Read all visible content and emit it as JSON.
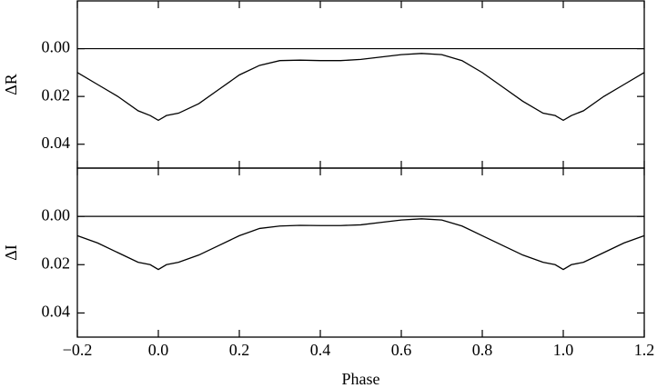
{
  "chart_data": [
    {
      "type": "line",
      "ylabel": "ΔR",
      "color": "#000000",
      "hline": 0,
      "x": [
        -0.2,
        -0.15,
        -0.1,
        -0.05,
        -0.02,
        0.0,
        0.02,
        0.05,
        0.1,
        0.15,
        0.2,
        0.25,
        0.3,
        0.35,
        0.4,
        0.45,
        0.5,
        0.55,
        0.6,
        0.65,
        0.7,
        0.75,
        0.8,
        0.85,
        0.9,
        0.95,
        0.98,
        1.0,
        1.02,
        1.05,
        1.1,
        1.15,
        1.2
      ],
      "values": [
        0.01,
        0.015,
        0.02,
        0.026,
        0.028,
        0.03,
        0.028,
        0.027,
        0.023,
        0.017,
        0.011,
        0.007,
        0.005,
        0.0048,
        0.005,
        0.005,
        0.0045,
        0.0035,
        0.0025,
        0.002,
        0.0025,
        0.005,
        0.01,
        0.016,
        0.022,
        0.027,
        0.028,
        0.03,
        0.028,
        0.026,
        0.02,
        0.015,
        0.01
      ],
      "xlim": [
        -0.2,
        1.2
      ],
      "xticks": [
        {
          "value": -0.2,
          "label": "−0.2"
        },
        {
          "value": 0,
          "label": "0.0"
        },
        {
          "value": 0.2,
          "label": "0.2"
        },
        {
          "value": 0.4,
          "label": "0.4"
        },
        {
          "value": 0.6,
          "label": "0.6"
        },
        {
          "value": 0.8,
          "label": "0.8"
        },
        {
          "value": 1,
          "label": "1.0"
        },
        {
          "value": 1.2,
          "label": "1.2"
        }
      ],
      "ylim": [
        0.05,
        -0.02
      ],
      "yticks": [
        {
          "value": 0,
          "label": "0.00"
        },
        {
          "value": 0.02,
          "label": "0.02"
        },
        {
          "value": 0.04,
          "label": "0.04"
        }
      ]
    },
    {
      "type": "line",
      "ylabel": "ΔI",
      "xlabel": "Phase",
      "color": "#000000",
      "hline": 0,
      "x": [
        -0.2,
        -0.15,
        -0.1,
        -0.05,
        -0.02,
        0.0,
        0.02,
        0.05,
        0.1,
        0.15,
        0.2,
        0.25,
        0.3,
        0.35,
        0.4,
        0.45,
        0.5,
        0.55,
        0.6,
        0.65,
        0.7,
        0.75,
        0.8,
        0.85,
        0.9,
        0.95,
        0.98,
        1.0,
        1.02,
        1.05,
        1.1,
        1.15,
        1.2
      ],
      "values": [
        0.008,
        0.011,
        0.015,
        0.019,
        0.02,
        0.022,
        0.02,
        0.019,
        0.016,
        0.012,
        0.008,
        0.005,
        0.004,
        0.0037,
        0.0038,
        0.0038,
        0.0035,
        0.0025,
        0.0015,
        0.001,
        0.0015,
        0.004,
        0.008,
        0.012,
        0.016,
        0.019,
        0.02,
        0.022,
        0.02,
        0.019,
        0.015,
        0.011,
        0.008
      ],
      "xlim": [
        -0.2,
        1.2
      ],
      "xticks": [
        {
          "value": -0.2,
          "label": "−0.2"
        },
        {
          "value": 0,
          "label": "0.0"
        },
        {
          "value": 0.2,
          "label": "0.2"
        },
        {
          "value": 0.4,
          "label": "0.4"
        },
        {
          "value": 0.6,
          "label": "0.6"
        },
        {
          "value": 0.8,
          "label": "0.8"
        },
        {
          "value": 1,
          "label": "1.0"
        },
        {
          "value": 1.2,
          "label": "1.2"
        }
      ],
      "ylim": [
        0.05,
        -0.02
      ],
      "yticks": [
        {
          "value": 0,
          "label": "0.00"
        },
        {
          "value": 0.02,
          "label": "0.02"
        },
        {
          "value": 0.04,
          "label": "0.04"
        }
      ]
    }
  ]
}
